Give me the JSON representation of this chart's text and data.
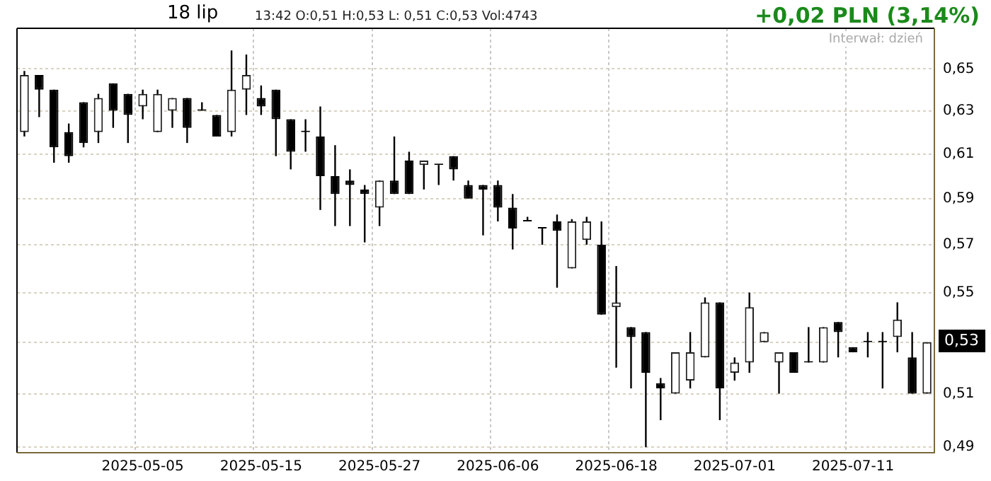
{
  "chart_data": {
    "type": "candlestick",
    "categories": [
      null,
      null,
      null,
      null,
      null,
      null,
      null,
      null,
      "2025-05-05",
      null,
      null,
      null,
      null,
      null,
      null,
      null,
      "2025-05-15",
      null,
      null,
      null,
      null,
      null,
      null,
      null,
      "2025-05-27",
      null,
      null,
      null,
      null,
      null,
      null,
      null,
      "2025-06-06",
      null,
      null,
      null,
      null,
      null,
      null,
      null,
      "2025-06-18",
      null,
      null,
      null,
      null,
      null,
      null,
      null,
      "2025-07-01",
      null,
      null,
      null,
      null,
      null,
      null,
      null,
      "2025-07-11",
      null,
      null,
      null,
      null,
      null
    ],
    "ohlc": [
      [
        0.62,
        0.649,
        0.618,
        0.647
      ],
      [
        0.647,
        0.647,
        0.627,
        0.64
      ],
      [
        0.64,
        0.64,
        0.606,
        0.613
      ],
      [
        0.62,
        0.624,
        0.606,
        0.609
      ],
      [
        0.634,
        0.634,
        0.613,
        0.615
      ],
      [
        0.62,
        0.638,
        0.615,
        0.636
      ],
      [
        0.643,
        0.643,
        0.622,
        0.63
      ],
      [
        0.638,
        0.638,
        0.615,
        0.628
      ],
      [
        0.632,
        0.64,
        0.626,
        0.638
      ],
      [
        0.62,
        0.64,
        0.62,
        0.638
      ],
      [
        0.63,
        0.636,
        0.622,
        0.636
      ],
      [
        0.636,
        0.636,
        0.615,
        0.622
      ],
      [
        0.63,
        0.634,
        0.63,
        0.63
      ],
      [
        0.628,
        0.628,
        0.618,
        0.618
      ],
      [
        0.62,
        0.659,
        0.618,
        0.64
      ],
      [
        0.64,
        0.657,
        0.628,
        0.647
      ],
      [
        0.636,
        0.642,
        0.628,
        0.632
      ],
      [
        0.64,
        0.64,
        0.609,
        0.626
      ],
      [
        0.626,
        0.626,
        0.603,
        0.611
      ],
      [
        0.62,
        0.626,
        0.611,
        0.62
      ],
      [
        0.618,
        0.632,
        0.585,
        0.6
      ],
      [
        0.6,
        0.614,
        0.578,
        0.592
      ],
      [
        0.598,
        0.603,
        0.578,
        0.596
      ],
      [
        0.594,
        0.596,
        0.571,
        0.592
      ],
      [
        0.586,
        0.598,
        0.578,
        0.598
      ],
      [
        0.598,
        0.618,
        0.592,
        0.592
      ],
      [
        0.607,
        0.611,
        0.592,
        0.592
      ],
      [
        0.605,
        0.607,
        0.594,
        0.607
      ],
      [
        0.605,
        0.605,
        0.596,
        0.605
      ],
      [
        0.609,
        0.609,
        0.598,
        0.603
      ],
      [
        0.596,
        0.598,
        0.59,
        0.59
      ],
      [
        0.596,
        0.596,
        0.574,
        0.594
      ],
      [
        0.596,
        0.598,
        0.58,
        0.586
      ],
      [
        0.586,
        0.592,
        0.568,
        0.577
      ],
      [
        0.58,
        0.582,
        0.58,
        0.58
      ],
      [
        0.577,
        0.577,
        0.57,
        0.577
      ],
      [
        0.58,
        0.583,
        0.552,
        0.576
      ],
      [
        0.56,
        0.581,
        0.56,
        0.58
      ],
      [
        0.572,
        0.582,
        0.57,
        0.58
      ],
      [
        0.57,
        0.58,
        0.541,
        0.541
      ],
      [
        0.544,
        0.561,
        0.52,
        0.546
      ],
      [
        0.536,
        0.536,
        0.512,
        0.532
      ],
      [
        0.534,
        0.534,
        0.49,
        0.518
      ],
      [
        0.514,
        0.516,
        0.5,
        0.512
      ],
      [
        0.51,
        0.526,
        0.51,
        0.526
      ],
      [
        0.515,
        0.534,
        0.512,
        0.526
      ],
      [
        0.524,
        0.548,
        0.524,
        0.546
      ],
      [
        0.546,
        0.546,
        0.5,
        0.512
      ],
      [
        0.518,
        0.524,
        0.515,
        0.522
      ],
      [
        0.522,
        0.55,
        0.518,
        0.544
      ],
      [
        0.53,
        0.534,
        0.53,
        0.534
      ],
      [
        0.522,
        0.526,
        0.51,
        0.526
      ],
      [
        0.526,
        0.526,
        0.518,
        0.518
      ],
      [
        0.522,
        0.536,
        0.522,
        0.522
      ],
      [
        0.522,
        0.536,
        0.522,
        0.536
      ],
      [
        0.538,
        0.538,
        0.524,
        0.534
      ],
      [
        0.528,
        0.528,
        0.526,
        0.526
      ],
      [
        0.53,
        0.534,
        0.524,
        0.53
      ],
      [
        0.53,
        0.534,
        0.512,
        0.53
      ],
      [
        0.532,
        0.546,
        0.526,
        0.539
      ],
      [
        0.524,
        0.534,
        0.51,
        0.51
      ],
      [
        0.51,
        0.53,
        0.51,
        0.53
      ]
    ],
    "ylim": [
      0.488,
      0.67
    ],
    "yticks": [
      {
        "value": 0.49,
        "label": "0,49"
      },
      {
        "value": 0.51,
        "label": "0,51"
      },
      {
        "value": 0.53,
        "label": null
      },
      {
        "value": 0.55,
        "label": "0,55"
      },
      {
        "value": 0.57,
        "label": "0,57"
      },
      {
        "value": 0.59,
        "label": "0,59"
      },
      {
        "value": 0.61,
        "label": "0,61"
      },
      {
        "value": 0.63,
        "label": "0,63"
      },
      {
        "value": 0.65,
        "label": "0,65"
      }
    ],
    "log": "y",
    "grid": true,
    "annotations": [
      "18 lip",
      "13:42 O:0,51 H:0,53 L: 0,51 C:0,53 Vol:4743",
      "+0,02 PLN (3,14%)",
      "Interwał: dzień",
      "0,53"
    ]
  }
}
